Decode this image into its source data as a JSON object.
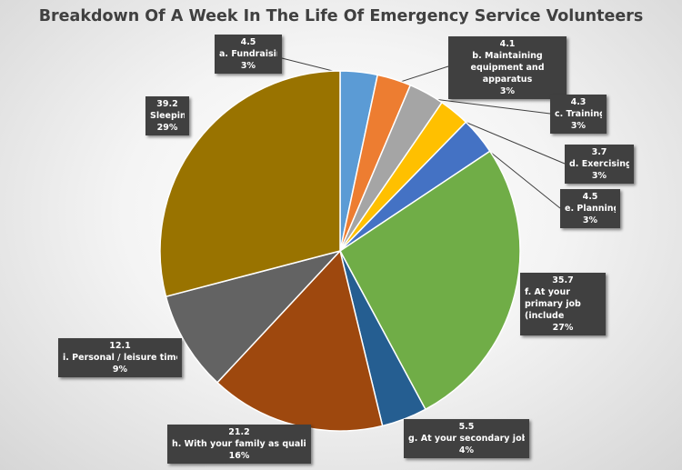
{
  "chart_data": {
    "type": "pie",
    "title": "Breakdown Of A Week In The Life Of Emergency Service Volunteers",
    "slices": [
      {
        "label": "a. Fundraising",
        "value": 4.5,
        "percent": "3%",
        "color": "#5b9bd5"
      },
      {
        "label": "b. Maintaining equipment and apparatus",
        "value": 4.1,
        "percent": "3%",
        "color": "#ed7d31"
      },
      {
        "label": "c. Training",
        "value": 4.3,
        "percent": "3%",
        "color": "#a5a5a5"
      },
      {
        "label": "d. Exercising",
        "value": 3.7,
        "percent": "3%",
        "color": "#ffc000"
      },
      {
        "label": "e. Planning",
        "value": 4.5,
        "percent": "3%",
        "color": "#4472c4"
      },
      {
        "label": "f. At your primary job (include",
        "value": 35.7,
        "percent": "27%",
        "color": "#70ad47"
      },
      {
        "label": "g. At your secondary job(s)",
        "value": 5.5,
        "percent": "4%",
        "color": "#255e91"
      },
      {
        "label": "h. With your family as quality",
        "value": 21.2,
        "percent": "16%",
        "color": "#9e480e"
      },
      {
        "label": "i. Personal / leisure time",
        "value": 12.1,
        "percent": "9%",
        "color": "#636363"
      },
      {
        "label": "Sleeping",
        "value": 39.2,
        "percent": "29%",
        "color": "#997300"
      }
    ],
    "legend": "none"
  }
}
